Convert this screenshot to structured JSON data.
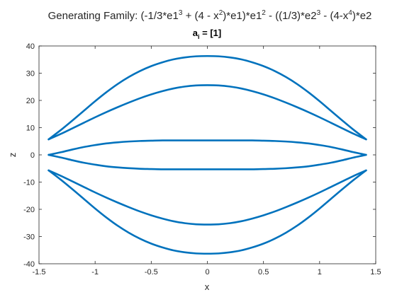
{
  "figure": {
    "title_parts": [
      "Generating Family: (-1/3*e1",
      "3",
      " + (4 - x",
      "2",
      ")*e1)*e1",
      "2",
      " - ((1/3)*e2",
      "3",
      " - (4-x",
      "4",
      ")*e2"
    ],
    "subtitle_main": "a",
    "subtitle_sub": "i",
    "subtitle_rest": " = [1]"
  },
  "chart_data": {
    "type": "line",
    "title": "Generating Family: (-1/3*e1^3 + (4 - x^2)*e1)*e1^2 - ((1/3)*e2^3 - (4-x^4)*e2",
    "subtitle": "a_i = [1]",
    "xlabel": "x",
    "ylabel": "z",
    "xlim": [
      -1.5,
      1.5
    ],
    "ylim": [
      -40,
      40
    ],
    "xticks": [
      -1.5,
      -1,
      -0.5,
      0,
      0.5,
      1,
      1.5
    ],
    "xtick_labels": [
      "-1.5",
      "-1",
      "-0.5",
      "0",
      "0.5",
      "1",
      "1.5"
    ],
    "yticks": [
      -40,
      -30,
      -20,
      -10,
      0,
      10,
      20,
      30,
      40
    ],
    "ytick_labels": [
      "-40",
      "-30",
      "-20",
      "-10",
      "0",
      "10",
      "20",
      "30",
      "40"
    ],
    "grid": false,
    "line_color": "#0072BD",
    "x": [
      -1.4142,
      -1.3,
      -1.2,
      -1.1,
      -1.0,
      -0.9,
      -0.8,
      -0.7,
      -0.6,
      -0.5,
      -0.4,
      -0.3,
      -0.2,
      -0.1,
      0.0,
      0.1,
      0.2,
      0.3,
      0.4,
      0.5,
      0.6,
      0.7,
      0.8,
      0.9,
      1.0,
      1.1,
      1.2,
      1.3,
      1.4142
    ],
    "series": [
      {
        "values": [
          5.7,
          9.3,
          12.7,
          16.2,
          19.7,
          23.0,
          26.0,
          28.6,
          30.8,
          32.6,
          34.0,
          35.1,
          35.8,
          36.2,
          36.3,
          36.2,
          35.8,
          35.1,
          34.0,
          32.6,
          30.8,
          28.6,
          26.0,
          23.0,
          19.7,
          16.2,
          12.7,
          9.3,
          5.7
        ]
      },
      {
        "values": [
          5.7,
          7.8,
          9.8,
          11.8,
          13.8,
          15.7,
          17.5,
          19.2,
          20.8,
          22.2,
          23.4,
          24.4,
          25.1,
          25.5,
          25.6,
          25.5,
          25.1,
          24.4,
          23.4,
          22.2,
          20.8,
          19.2,
          17.5,
          15.7,
          13.8,
          11.8,
          9.8,
          7.8,
          5.7
        ]
      },
      {
        "values": [
          0.0,
          1.0,
          2.0,
          2.9,
          3.6,
          4.2,
          4.6,
          4.9,
          5.1,
          5.2,
          5.3,
          5.3,
          5.3,
          5.3,
          5.3,
          5.3,
          5.3,
          5.3,
          5.3,
          5.2,
          5.1,
          4.9,
          4.6,
          4.2,
          3.6,
          2.9,
          2.0,
          1.0,
          0.0
        ]
      },
      {
        "values": [
          0.0,
          -1.0,
          -2.0,
          -2.9,
          -3.6,
          -4.2,
          -4.6,
          -4.9,
          -5.1,
          -5.2,
          -5.3,
          -5.3,
          -5.3,
          -5.3,
          -5.3,
          -5.3,
          -5.3,
          -5.3,
          -5.3,
          -5.2,
          -5.1,
          -4.9,
          -4.6,
          -4.2,
          -3.6,
          -2.9,
          -2.0,
          -1.0,
          0.0
        ]
      },
      {
        "values": [
          -5.7,
          -7.8,
          -9.8,
          -11.8,
          -13.8,
          -15.7,
          -17.5,
          -19.2,
          -20.8,
          -22.2,
          -23.4,
          -24.4,
          -25.1,
          -25.5,
          -25.6,
          -25.5,
          -25.1,
          -24.4,
          -23.4,
          -22.2,
          -20.8,
          -19.2,
          -17.5,
          -15.7,
          -13.8,
          -11.8,
          -9.8,
          -7.8,
          -5.7
        ]
      },
      {
        "values": [
          -5.7,
          -9.3,
          -12.7,
          -16.2,
          -19.7,
          -23.0,
          -26.0,
          -28.6,
          -30.8,
          -32.6,
          -34.0,
          -35.1,
          -35.8,
          -36.2,
          -36.3,
          -36.2,
          -35.8,
          -35.1,
          -34.0,
          -32.6,
          -30.8,
          -28.6,
          -26.0,
          -23.0,
          -19.7,
          -16.2,
          -12.7,
          -9.3,
          -5.7
        ]
      }
    ]
  }
}
